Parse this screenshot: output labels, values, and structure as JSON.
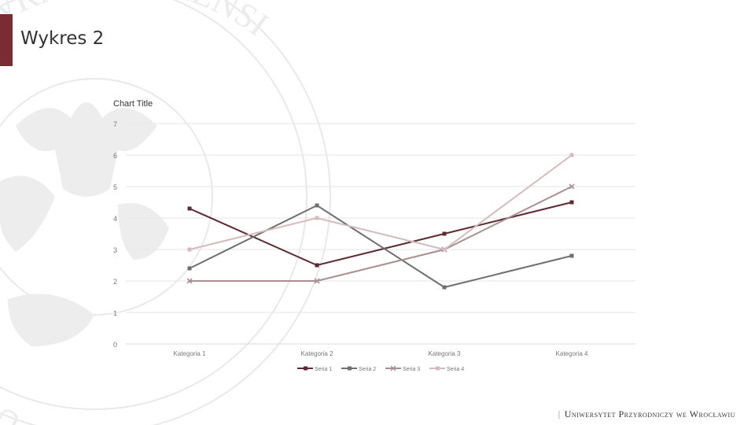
{
  "slide": {
    "title": "Wykres 2",
    "footer": "Uniwersytet Przyrodniczy we Wrocławiu",
    "accent_color": "#7b2b33"
  },
  "seal": {
    "text": "UNIVERSITAS NATURALIUM WRATISLAVIENSIS"
  },
  "chart_data": {
    "type": "line",
    "title": "Chart Title",
    "categories": [
      "Kategoria 1",
      "Kategoria 2",
      "Kategoria 3",
      "Kategoria 4"
    ],
    "ylim": [
      0,
      7
    ],
    "yticks": [
      0,
      1,
      2,
      3,
      4,
      5,
      6,
      7
    ],
    "grid": true,
    "legend_position": "bottom",
    "series": [
      {
        "name": "Seria 1",
        "values": [
          4.3,
          2.5,
          3.5,
          4.5
        ],
        "color": "#5b2b30",
        "marker": "square"
      },
      {
        "name": "Seria 2",
        "values": [
          2.4,
          4.4,
          1.8,
          2.8
        ],
        "color": "#6f6f6f",
        "marker": "square"
      },
      {
        "name": "Seria 3",
        "values": [
          2,
          2,
          3,
          5
        ],
        "color": "#a88f92",
        "marker": "x"
      },
      {
        "name": "Seria 4",
        "values": [
          3,
          4,
          3,
          6
        ],
        "color": "#d4bcbe",
        "marker": "square"
      }
    ]
  }
}
